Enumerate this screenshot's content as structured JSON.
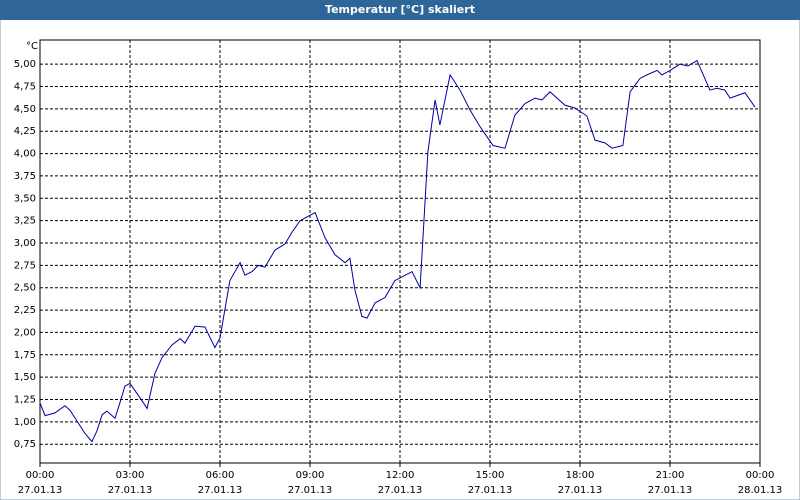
{
  "chart_data": {
    "type": "line",
    "title": "Temperatur [°C] skaliert",
    "ylabel": "°C",
    "x": [
      0,
      0.17,
      0.5,
      0.83,
      1,
      1.5,
      1.73,
      1.9,
      2.07,
      2.23,
      2.5,
      2.67,
      2.83,
      3,
      3.33,
      3.57,
      3.83,
      4.07,
      4.4,
      4.67,
      4.83,
      5.17,
      5.5,
      5.83,
      6,
      6.33,
      6.67,
      6.83,
      7.07,
      7.27,
      7.5,
      7.83,
      8.17,
      8.4,
      8.67,
      9.17,
      9.5,
      9.83,
      10.17,
      10.33,
      10.5,
      10.73,
      10.9,
      11.17,
      11.5,
      11.83,
      12.4,
      12.67,
      12.93,
      13.17,
      13.33,
      13.67,
      14,
      14.33,
      14.67,
      15.1,
      15.5,
      15.83,
      16.17,
      16.5,
      16.73,
      17,
      17.5,
      17.83,
      18.23,
      18.5,
      18.83,
      19.07,
      19.43,
      19.67,
      20,
      20.23,
      20.57,
      20.73,
      21,
      21.33,
      21.6,
      21.9,
      22.33,
      22.57,
      22.83,
      23,
      23.5,
      23.83
    ],
    "series": [
      {
        "name": "Temperatur",
        "color": "#0000a0",
        "values": [
          1.21,
          1.07,
          1.1,
          1.18,
          1.13,
          0.87,
          0.78,
          0.9,
          1.08,
          1.12,
          1.04,
          1.22,
          1.4,
          1.43,
          1.27,
          1.15,
          1.54,
          1.72,
          1.86,
          1.93,
          1.88,
          2.07,
          2.06,
          1.83,
          1.94,
          2.58,
          2.78,
          2.64,
          2.68,
          2.75,
          2.73,
          2.92,
          2.99,
          3.12,
          3.25,
          3.34,
          3.06,
          2.87,
          2.78,
          2.83,
          2.47,
          2.18,
          2.16,
          2.33,
          2.39,
          2.58,
          2.68,
          2.5,
          4.02,
          4.6,
          4.32,
          4.88,
          4.71,
          4.49,
          4.3,
          4.09,
          4.06,
          4.43,
          4.56,
          4.62,
          4.6,
          4.69,
          4.54,
          4.51,
          4.42,
          4.15,
          4.12,
          4.06,
          4.09,
          4.69,
          4.84,
          4.88,
          4.93,
          4.88,
          4.93,
          5.0,
          4.98,
          5.04,
          4.71,
          4.73,
          4.71,
          4.62,
          4.68,
          4.52
        ]
      }
    ],
    "xlim": [
      0,
      24
    ],
    "ylim": [
      0.54,
      5.27
    ],
    "xticks": [
      {
        "value": 0,
        "label": "00:00"
      },
      {
        "value": 3,
        "label": "03:00"
      },
      {
        "value": 6,
        "label": "06:00"
      },
      {
        "value": 9,
        "label": "09:00"
      },
      {
        "value": 12,
        "label": "12:00"
      },
      {
        "value": 15,
        "label": "15:00"
      },
      {
        "value": 18,
        "label": "18:00"
      },
      {
        "value": 21,
        "label": "21:00"
      },
      {
        "value": 24,
        "label": "00:00"
      }
    ],
    "xtick_dates": [
      "27.01.13",
      "27.01.13",
      "27.01.13",
      "27.01.13",
      "27.01.13",
      "27.01.13",
      "27.01.13",
      "27.01.13",
      "28.01.13"
    ],
    "yticks": [
      {
        "value": 0.75,
        "label": "0,75"
      },
      {
        "value": 1,
        "label": "1,00"
      },
      {
        "value": 1.25,
        "label": "1,25"
      },
      {
        "value": 1.5,
        "label": "1,50"
      },
      {
        "value": 1.75,
        "label": "1,75"
      },
      {
        "value": 2,
        "label": "2,00"
      },
      {
        "value": 2.25,
        "label": "2,25"
      },
      {
        "value": 2.5,
        "label": "2,50"
      },
      {
        "value": 2.75,
        "label": "2,75"
      },
      {
        "value": 3,
        "label": "3,00"
      },
      {
        "value": 3.25,
        "label": "3,25"
      },
      {
        "value": 3.5,
        "label": "3,50"
      },
      {
        "value": 3.75,
        "label": "3,75"
      },
      {
        "value": 4,
        "label": "4,00"
      },
      {
        "value": 4.25,
        "label": "4,25"
      },
      {
        "value": 4.5,
        "label": "4,50"
      },
      {
        "value": 4.75,
        "label": "4,75"
      },
      {
        "value": 5,
        "label": "5,00"
      }
    ],
    "grid": true
  }
}
